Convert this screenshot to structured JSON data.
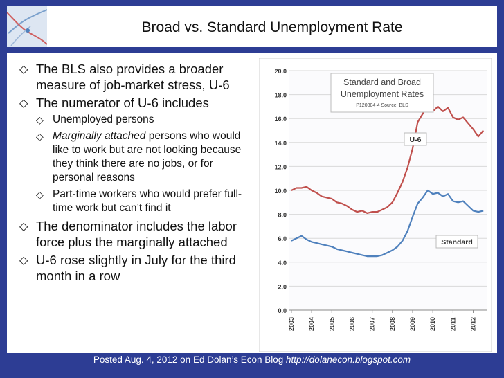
{
  "slide": {
    "title": "Broad vs. Standard Unemployment Rate",
    "bullets": [
      {
        "text": "The BLS also provides a broader measure of job-market stress, U-6"
      },
      {
        "text": "The numerator of U-6 includes",
        "subs": [
          {
            "text": "Unemployed persons"
          },
          {
            "italic": "Marginally attached",
            "text": " persons who would like to work but are not looking because they think there are no jobs, or for personal reasons"
          },
          {
            "text": "Part-time workers who would prefer full-time work but can’t find it"
          }
        ]
      },
      {
        "text": "The denominator includes the labor force plus the marginally attached"
      },
      {
        "text": "U-6 rose slightly in July for the third month in a row"
      }
    ],
    "footer": {
      "text": "Posted Aug. 4, 2012 on Ed Dolan’s Econ Blog ",
      "url": "http://dolanecon.blogspot.com"
    }
  },
  "chart_data": {
    "type": "line",
    "title": "Standard and Broad Unemployment Rates",
    "subtitle": "P120804-4 Source: BLS",
    "xlabel": "",
    "ylabel": "",
    "ylim": [
      0,
      20
    ],
    "yticks": [
      "0.0",
      "2.0",
      "4.0",
      "6.0",
      "8.0",
      "10.0",
      "12.0",
      "14.0",
      "16.0",
      "18.0",
      "20.0"
    ],
    "xticks": [
      "2003",
      "2004",
      "2005",
      "2006",
      "2007",
      "2008",
      "2009",
      "2010",
      "2011",
      "2012"
    ],
    "grid": true,
    "series": [
      {
        "name": "U-6",
        "color": "#c0504d",
        "points": [
          [
            2003.0,
            10.0
          ],
          [
            2003.25,
            10.2
          ],
          [
            2003.5,
            10.2
          ],
          [
            2003.75,
            10.3
          ],
          [
            2004.0,
            10.0
          ],
          [
            2004.25,
            9.8
          ],
          [
            2004.5,
            9.5
          ],
          [
            2004.75,
            9.4
          ],
          [
            2005.0,
            9.3
          ],
          [
            2005.25,
            9.0
          ],
          [
            2005.5,
            8.9
          ],
          [
            2005.75,
            8.7
          ],
          [
            2006.0,
            8.4
          ],
          [
            2006.25,
            8.2
          ],
          [
            2006.5,
            8.3
          ],
          [
            2006.75,
            8.1
          ],
          [
            2007.0,
            8.2
          ],
          [
            2007.25,
            8.2
          ],
          [
            2007.5,
            8.4
          ],
          [
            2007.75,
            8.6
          ],
          [
            2008.0,
            9.0
          ],
          [
            2008.25,
            9.8
          ],
          [
            2008.5,
            10.7
          ],
          [
            2008.75,
            11.9
          ],
          [
            2009.0,
            13.5
          ],
          [
            2009.25,
            15.7
          ],
          [
            2009.5,
            16.4
          ],
          [
            2009.75,
            17.1
          ],
          [
            2010.0,
            16.6
          ],
          [
            2010.25,
            17.0
          ],
          [
            2010.5,
            16.6
          ],
          [
            2010.75,
            16.9
          ],
          [
            2011.0,
            16.1
          ],
          [
            2011.25,
            15.9
          ],
          [
            2011.5,
            16.1
          ],
          [
            2011.75,
            15.6
          ],
          [
            2012.0,
            15.1
          ],
          [
            2012.25,
            14.5
          ],
          [
            2012.5,
            15.0
          ]
        ]
      },
      {
        "name": "Standard",
        "color": "#4f81bd",
        "points": [
          [
            2003.0,
            5.8
          ],
          [
            2003.25,
            6.0
          ],
          [
            2003.5,
            6.2
          ],
          [
            2003.75,
            5.9
          ],
          [
            2004.0,
            5.7
          ],
          [
            2004.25,
            5.6
          ],
          [
            2004.5,
            5.5
          ],
          [
            2004.75,
            5.4
          ],
          [
            2005.0,
            5.3
          ],
          [
            2005.25,
            5.1
          ],
          [
            2005.5,
            5.0
          ],
          [
            2005.75,
            4.9
          ],
          [
            2006.0,
            4.8
          ],
          [
            2006.25,
            4.7
          ],
          [
            2006.5,
            4.6
          ],
          [
            2006.75,
            4.5
          ],
          [
            2007.0,
            4.5
          ],
          [
            2007.25,
            4.5
          ],
          [
            2007.5,
            4.6
          ],
          [
            2007.75,
            4.8
          ],
          [
            2008.0,
            5.0
          ],
          [
            2008.25,
            5.3
          ],
          [
            2008.5,
            5.8
          ],
          [
            2008.75,
            6.6
          ],
          [
            2009.0,
            7.8
          ],
          [
            2009.25,
            8.9
          ],
          [
            2009.5,
            9.4
          ],
          [
            2009.75,
            10.0
          ],
          [
            2010.0,
            9.7
          ],
          [
            2010.25,
            9.8
          ],
          [
            2010.5,
            9.5
          ],
          [
            2010.75,
            9.7
          ],
          [
            2011.0,
            9.1
          ],
          [
            2011.25,
            9.0
          ],
          [
            2011.5,
            9.1
          ],
          [
            2011.75,
            8.7
          ],
          [
            2012.0,
            8.3
          ],
          [
            2012.25,
            8.2
          ],
          [
            2012.5,
            8.3
          ]
        ]
      }
    ]
  }
}
